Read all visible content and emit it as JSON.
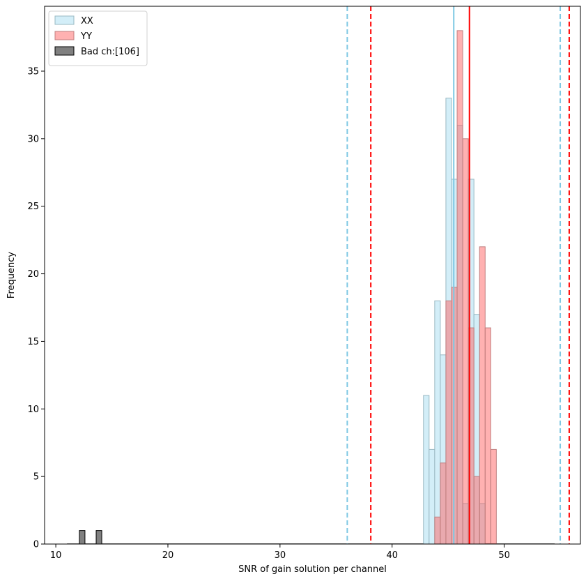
{
  "chart_data": {
    "type": "histogram",
    "xlabel": "SNR of gain solution per channel",
    "ylabel": "Frequency",
    "xlim": [
      9.0,
      56.8
    ],
    "ylim": [
      0,
      39.8
    ],
    "xticks": [
      10,
      20,
      30,
      40,
      50
    ],
    "yticks": [
      0,
      5,
      10,
      15,
      20,
      25,
      30,
      35
    ],
    "bin_width": 0.5,
    "legend_position": "top-left",
    "series": [
      {
        "name": "XX",
        "fill": "#d3eef8",
        "stroke": "#9ab8c2",
        "bins": [
          {
            "x": 42.8,
            "count": 11
          },
          {
            "x": 43.3,
            "count": 7
          },
          {
            "x": 43.8,
            "count": 18
          },
          {
            "x": 44.3,
            "count": 14
          },
          {
            "x": 44.8,
            "count": 33
          },
          {
            "x": 45.3,
            "count": 27
          },
          {
            "x": 45.8,
            "count": 31
          },
          {
            "x": 46.3,
            "count": 3
          },
          {
            "x": 46.8,
            "count": 27
          },
          {
            "x": 47.3,
            "count": 17
          },
          {
            "x": 47.8,
            "count": 3
          }
        ]
      },
      {
        "name": "YY",
        "fill": "rgba(255,100,100,0.5)",
        "stroke": "#c08080",
        "bins": [
          {
            "x": 43.8,
            "count": 2
          },
          {
            "x": 44.3,
            "count": 6
          },
          {
            "x": 44.8,
            "count": 18
          },
          {
            "x": 45.3,
            "count": 19
          },
          {
            "x": 45.8,
            "count": 38
          },
          {
            "x": 46.3,
            "count": 30
          },
          {
            "x": 46.8,
            "count": 16
          },
          {
            "x": 47.3,
            "count": 5
          },
          {
            "x": 47.8,
            "count": 22
          },
          {
            "x": 48.3,
            "count": 16
          },
          {
            "x": 48.8,
            "count": 7
          }
        ]
      },
      {
        "name": "Bad ch:[106]",
        "fill": "#808080",
        "stroke": "#000000",
        "bins": [
          {
            "x": 12.1,
            "count": 1
          },
          {
            "x": 13.6,
            "count": 1
          }
        ]
      }
    ],
    "baseline": {
      "x_start": 11.0,
      "x_end": 54.5
    },
    "reference_lines": [
      {
        "x": 36.0,
        "color": "#7ec8e3",
        "style": "dashed"
      },
      {
        "x": 45.5,
        "color": "#7ec8e3",
        "style": "solid"
      },
      {
        "x": 55.0,
        "color": "#7ec8e3",
        "style": "dashed"
      },
      {
        "x": 38.1,
        "color": "#ff0000",
        "style": "dashed"
      },
      {
        "x": 46.9,
        "color": "#ff0000",
        "style": "solid"
      },
      {
        "x": 55.8,
        "color": "#ff0000",
        "style": "dashed"
      }
    ]
  }
}
